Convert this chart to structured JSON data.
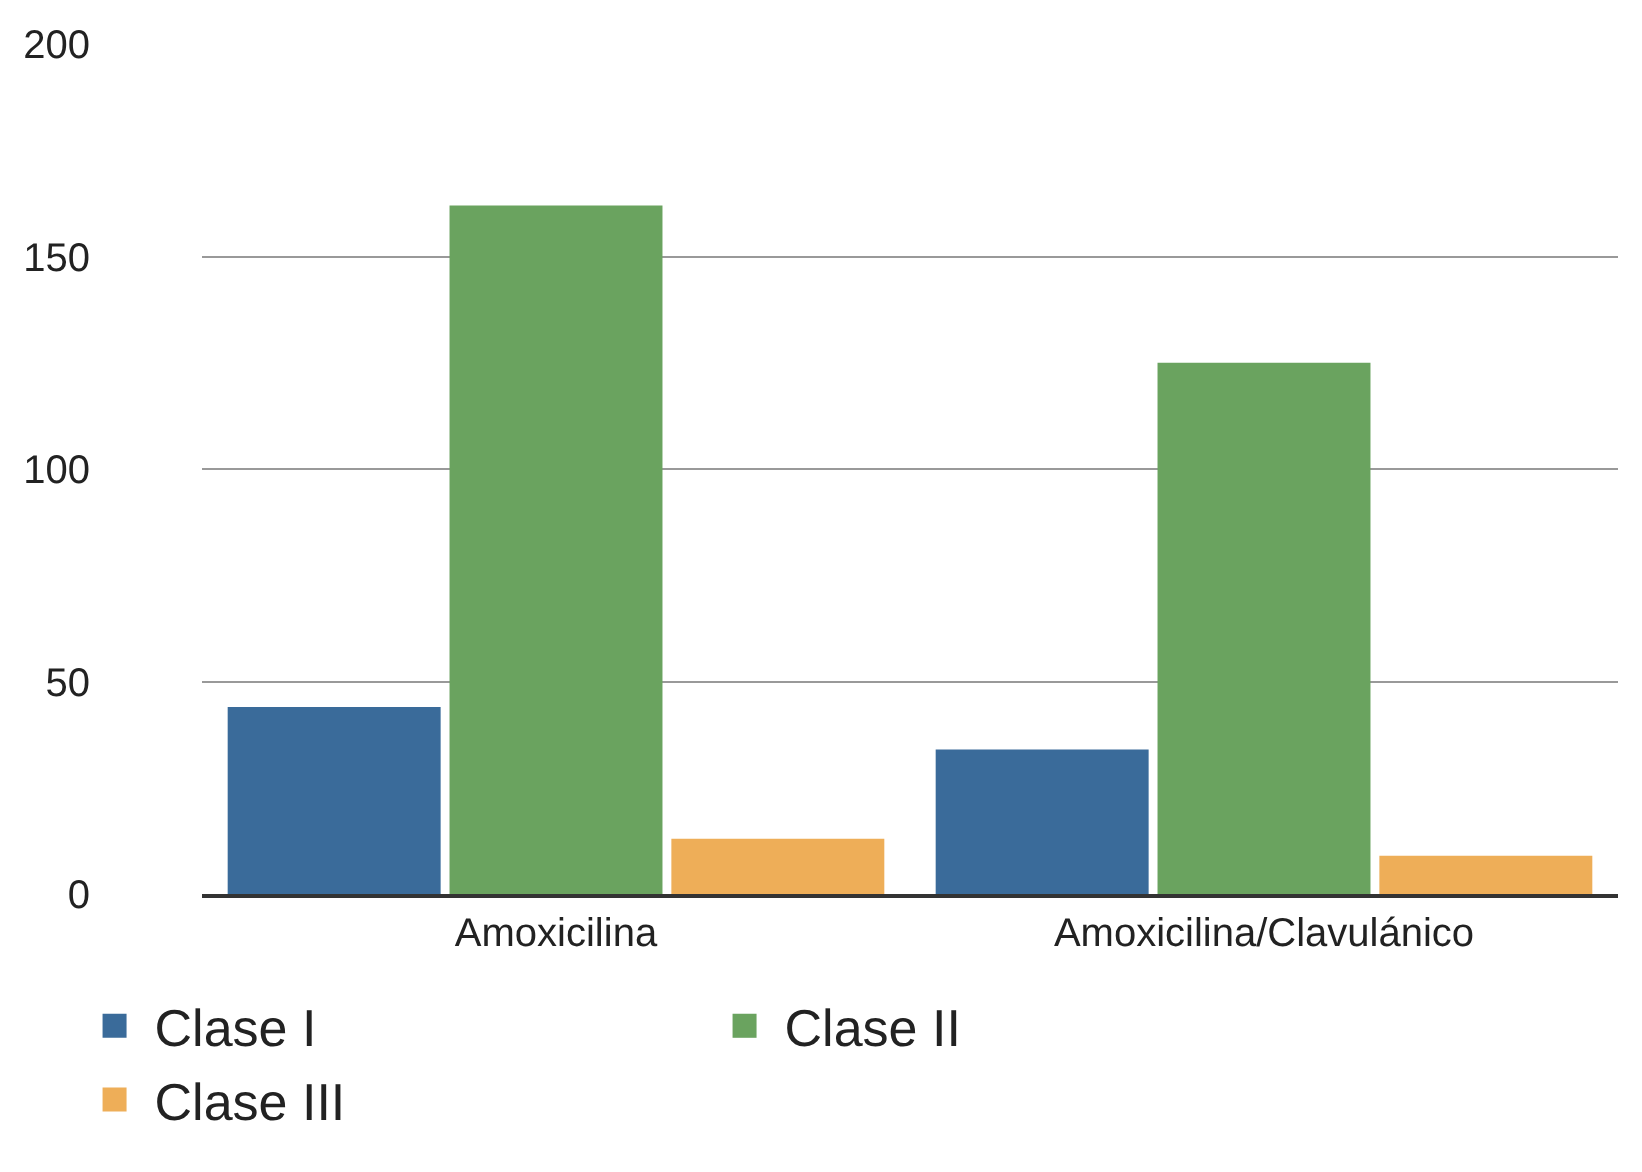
{
  "chart_data": {
    "type": "bar",
    "categories": [
      "Amoxicilina",
      "Amoxicilina/Clavulánico"
    ],
    "series": [
      {
        "name": "Clase I",
        "color": "#3a6b9a",
        "values": [
          44,
          34
        ]
      },
      {
        "name": "Clase II",
        "color": "#6aa35f",
        "values": [
          162,
          125
        ]
      },
      {
        "name": "Clase III",
        "color": "#eeae58",
        "values": [
          13,
          9
        ]
      }
    ],
    "ylim": [
      0,
      200
    ],
    "yticks": [
      0,
      50,
      100,
      150,
      200
    ],
    "grid": "y",
    "legend": "bottom"
  }
}
